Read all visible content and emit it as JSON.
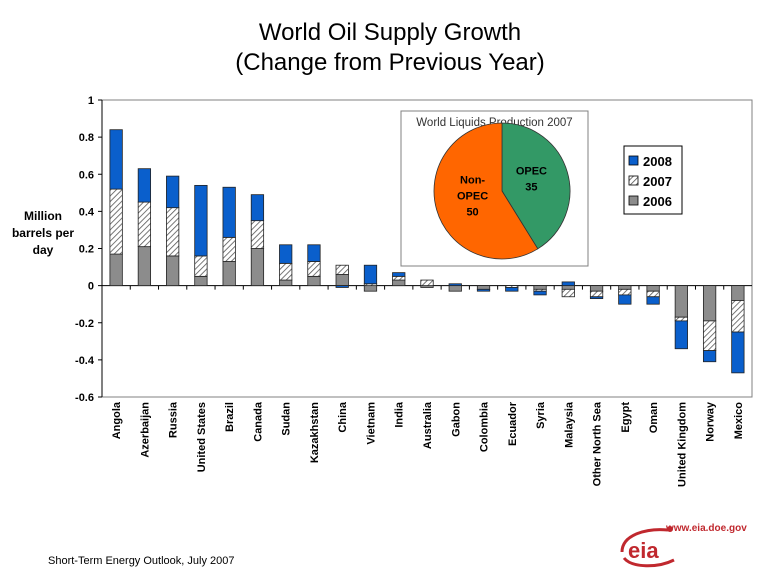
{
  "title_line1": "World Oil Supply Growth",
  "title_line2": "(Change from Previous Year)",
  "ylabel": "Million barrels per day",
  "source": "Short-Term Energy Outlook, July 2007",
  "logo_url": "www.eia.doe.gov",
  "logo_text": "eia",
  "colors": {
    "s2008": "#0a5fcc",
    "s2007": "#ffffff",
    "s2006": "#8c8c8c",
    "opec": "#339966",
    "nonopec": "#ff6600",
    "logo": "#c0282e"
  },
  "chart_data": {
    "type": "bar",
    "stacked": true,
    "title": "World Oil Supply Growth (Change from Previous Year)",
    "xlabel": "",
    "ylabel": "Million barrels per day",
    "ylim": [
      -0.6,
      1
    ],
    "yticks": [
      "1",
      "0.8",
      "0.6",
      "0.4",
      "0.2",
      "0",
      "-0.2",
      "-0.4",
      "-0.6"
    ],
    "ytick_values": [
      1,
      0.8,
      0.6,
      0.4,
      0.2,
      0,
      -0.2,
      -0.4,
      -0.6
    ],
    "legend": {
      "position": "top-right",
      "entries": [
        "2008",
        "2007",
        "2006"
      ]
    },
    "grid": false,
    "categories": [
      "Angola",
      "Azerbaijan",
      "Russia",
      "United States",
      "Brazil",
      "Canada",
      "Sudan",
      "Kazakhstan",
      "China",
      "Vietnam",
      "India",
      "Australia",
      "Gabon",
      "Colombia",
      "Ecuador",
      "Syria",
      "Malaysia",
      "Other North Sea",
      "Egypt",
      "Oman",
      "United Kingdom",
      "Norway",
      "Mexico"
    ],
    "series": [
      {
        "name": "2006",
        "values": [
          0.17,
          0.21,
          0.16,
          0.05,
          0.13,
          0.2,
          0.03,
          0.05,
          0.06,
          -0.03,
          0.03,
          -0.01,
          -0.03,
          -0.02,
          0.0,
          -0.02,
          -0.02,
          -0.03,
          -0.02,
          -0.03,
          -0.17,
          -0.19,
          -0.08
        ]
      },
      {
        "name": "2007",
        "values": [
          0.35,
          0.24,
          0.26,
          0.11,
          0.13,
          0.15,
          0.09,
          0.08,
          0.05,
          0.01,
          0.02,
          0.03,
          0.0,
          0.0,
          -0.01,
          -0.01,
          -0.04,
          -0.03,
          -0.03,
          -0.03,
          -0.02,
          -0.16,
          -0.17
        ]
      },
      {
        "name": "2008",
        "values": [
          0.32,
          0.18,
          0.17,
          0.38,
          0.27,
          0.14,
          0.1,
          0.09,
          -0.01,
          0.1,
          0.02,
          0.0,
          0.01,
          -0.01,
          -0.02,
          -0.02,
          0.02,
          -0.01,
          -0.05,
          -0.04,
          -0.15,
          -0.06,
          -0.22
        ]
      }
    ],
    "inset": {
      "type": "pie",
      "title": "World Liquids Production 2007",
      "slices": [
        {
          "label": "OPEC",
          "value": 35
        },
        {
          "label": "Non-OPEC",
          "value": 50
        }
      ]
    }
  }
}
